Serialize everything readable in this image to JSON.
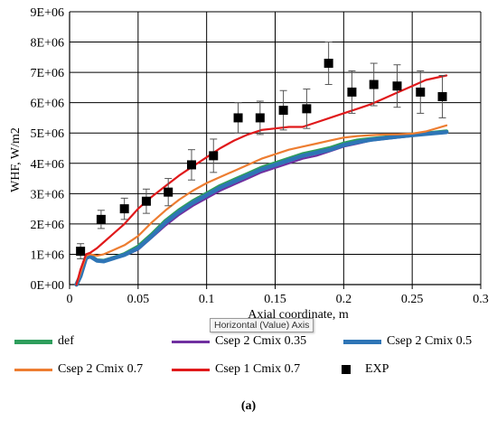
{
  "chart_data": {
    "type": "line",
    "title": "",
    "xlabel": "Axial coordinate, m",
    "ylabel": "WHF, W/m2",
    "xlim": [
      0,
      0.3
    ],
    "ylim": [
      0,
      9000000
    ],
    "x_ticks": [
      "0",
      "0.05",
      "0.1",
      "0.15",
      "0.2",
      "0.25",
      "0.3"
    ],
    "y_ticks": [
      "0E+00",
      "1E+06",
      "2E+06",
      "3E+06",
      "4E+06",
      "5E+06",
      "6E+06",
      "7E+06",
      "8E+06",
      "9E+06"
    ],
    "grid": true,
    "legend_position": "bottom",
    "series": [
      {
        "name": "def",
        "color": "#2e9e5c",
        "x": [
          0.005,
          0.008,
          0.012,
          0.015,
          0.02,
          0.025,
          0.03,
          0.04,
          0.05,
          0.06,
          0.07,
          0.08,
          0.09,
          0.1,
          0.11,
          0.12,
          0.13,
          0.14,
          0.15,
          0.16,
          0.17,
          0.18,
          0.19,
          0.2,
          0.21,
          0.22,
          0.23,
          0.24,
          0.25,
          0.26,
          0.275
        ],
        "y": [
          0,
          300000,
          900000,
          950000,
          800000,
          780000,
          850000,
          1000000,
          1250000,
          1650000,
          2100000,
          2450000,
          2750000,
          3000000,
          3250000,
          3450000,
          3650000,
          3850000,
          4000000,
          4150000,
          4300000,
          4400000,
          4500000,
          4650000,
          4750000,
          4800000,
          4850000,
          4900000,
          4950000,
          4980000,
          5050000
        ]
      },
      {
        "name": "Csep 2 Cmix 0.35",
        "color": "#7030a0",
        "x": [
          0.005,
          0.008,
          0.012,
          0.015,
          0.02,
          0.025,
          0.03,
          0.04,
          0.05,
          0.06,
          0.07,
          0.08,
          0.09,
          0.1,
          0.11,
          0.12,
          0.13,
          0.14,
          0.15,
          0.16,
          0.17,
          0.18,
          0.19,
          0.2,
          0.21,
          0.22,
          0.23,
          0.24,
          0.25,
          0.26,
          0.275
        ],
        "y": [
          0,
          250000,
          850000,
          900000,
          780000,
          760000,
          820000,
          950000,
          1150000,
          1550000,
          1950000,
          2300000,
          2600000,
          2850000,
          3100000,
          3300000,
          3500000,
          3700000,
          3850000,
          4000000,
          4150000,
          4250000,
          4400000,
          4550000,
          4650000,
          4750000,
          4800000,
          4850000,
          4900000,
          4950000,
          5000000
        ]
      },
      {
        "name": "Csep 2 Cmix 0.5",
        "color": "#2e75b6",
        "x": [
          0.005,
          0.008,
          0.012,
          0.015,
          0.02,
          0.025,
          0.03,
          0.04,
          0.05,
          0.06,
          0.07,
          0.08,
          0.09,
          0.1,
          0.11,
          0.12,
          0.13,
          0.14,
          0.15,
          0.16,
          0.17,
          0.18,
          0.19,
          0.2,
          0.21,
          0.22,
          0.23,
          0.24,
          0.25,
          0.26,
          0.275
        ],
        "y": [
          0,
          280000,
          880000,
          930000,
          790000,
          770000,
          840000,
          980000,
          1200000,
          1600000,
          2050000,
          2400000,
          2700000,
          2950000,
          3200000,
          3400000,
          3600000,
          3800000,
          3950000,
          4100000,
          4250000,
          4350000,
          4450000,
          4600000,
          4700000,
          4780000,
          4830000,
          4880000,
          4930000,
          4970000,
          5030000
        ]
      },
      {
        "name": "Csep 2 Cmix 0.7",
        "color": "#ed7d31",
        "x": [
          0.005,
          0.008,
          0.012,
          0.015,
          0.02,
          0.025,
          0.03,
          0.04,
          0.05,
          0.06,
          0.07,
          0.08,
          0.09,
          0.1,
          0.11,
          0.12,
          0.13,
          0.14,
          0.15,
          0.16,
          0.17,
          0.18,
          0.19,
          0.2,
          0.21,
          0.22,
          0.23,
          0.24,
          0.25,
          0.26,
          0.275
        ],
        "y": [
          0,
          400000,
          950000,
          1000000,
          950000,
          1000000,
          1100000,
          1300000,
          1600000,
          2050000,
          2450000,
          2800000,
          3100000,
          3350000,
          3550000,
          3750000,
          3950000,
          4150000,
          4300000,
          4450000,
          4550000,
          4650000,
          4750000,
          4850000,
          4900000,
          4930000,
          4950000,
          4960000,
          4980000,
          5050000,
          5250000
        ]
      },
      {
        "name": "Csep 1 Cmix 0.7",
        "color": "#e0191b",
        "x": [
          0.005,
          0.008,
          0.012,
          0.015,
          0.02,
          0.025,
          0.03,
          0.04,
          0.05,
          0.06,
          0.07,
          0.08,
          0.09,
          0.1,
          0.11,
          0.12,
          0.13,
          0.14,
          0.15,
          0.16,
          0.17,
          0.18,
          0.19,
          0.2,
          0.21,
          0.22,
          0.23,
          0.24,
          0.25,
          0.26,
          0.275
        ],
        "y": [
          0,
          500000,
          1000000,
          1050000,
          1200000,
          1400000,
          1600000,
          2000000,
          2500000,
          2900000,
          3250000,
          3600000,
          3900000,
          4200000,
          4500000,
          4750000,
          4950000,
          5100000,
          5150000,
          5200000,
          5200000,
          5350000,
          5500000,
          5650000,
          5800000,
          5950000,
          6150000,
          6350000,
          6550000,
          6750000,
          6900000
        ]
      }
    ],
    "exp": {
      "name": "EXP",
      "color": "#000000",
      "points": [
        {
          "x": 0.008,
          "y": 1100000,
          "err": 250000
        },
        {
          "x": 0.023,
          "y": 2150000,
          "err": 300000
        },
        {
          "x": 0.04,
          "y": 2500000,
          "err": 350000
        },
        {
          "x": 0.056,
          "y": 2750000,
          "err": 400000
        },
        {
          "x": 0.072,
          "y": 3050000,
          "err": 450000
        },
        {
          "x": 0.089,
          "y": 3950000,
          "err": 500000
        },
        {
          "x": 0.105,
          "y": 4250000,
          "err": 550000
        },
        {
          "x": 0.123,
          "y": 5500000,
          "err": 500000
        },
        {
          "x": 0.139,
          "y": 5500000,
          "err": 550000
        },
        {
          "x": 0.156,
          "y": 5750000,
          "err": 650000
        },
        {
          "x": 0.173,
          "y": 5800000,
          "err": 650000
        },
        {
          "x": 0.189,
          "y": 7300000,
          "err": 700000
        },
        {
          "x": 0.206,
          "y": 6350000,
          "err": 700000
        },
        {
          "x": 0.222,
          "y": 6600000,
          "err": 700000
        },
        {
          "x": 0.239,
          "y": 6550000,
          "err": 700000
        },
        {
          "x": 0.256,
          "y": 6350000,
          "err": 700000
        },
        {
          "x": 0.272,
          "y": 6200000,
          "err": 700000
        }
      ]
    }
  },
  "legend": {
    "items": [
      {
        "label": "def"
      },
      {
        "label": "Csep 2 Cmix 0.35"
      },
      {
        "label": "Csep 2 Cmix 0.5"
      },
      {
        "label": "Csep 2 Cmix 0.7"
      },
      {
        "label": "Csep 1 Cmix 0.7"
      },
      {
        "label": "EXP"
      }
    ]
  },
  "tooltip": {
    "text": "Horizontal (Value) Axis"
  },
  "caption": {
    "text": "(a)"
  }
}
